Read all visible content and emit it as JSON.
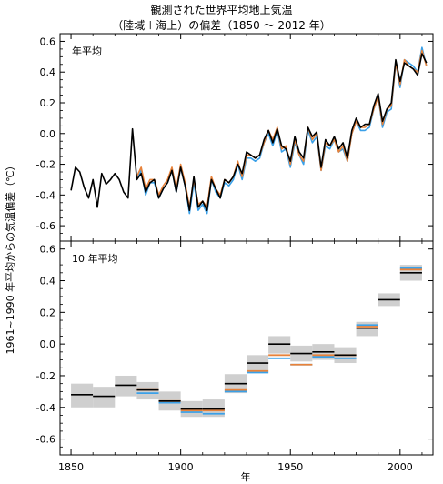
{
  "title_line1": "観測された世界平均地上気温",
  "title_line2": "（陸域＋海上）の偏差（1850 ～ 2012 年）",
  "ylabel": "1961~1990 年平均からの気温偏差（℃）",
  "xlabel": "年",
  "colors": {
    "black": "#000000",
    "orange": "#e8823a",
    "blue": "#3aa0e8",
    "band": "#cfcfcf"
  },
  "chart_data": [
    {
      "type": "line",
      "panel_label": "年平均",
      "ylim": [
        -0.7,
        0.65
      ],
      "xlim": [
        1845,
        2015
      ],
      "yticks": [
        -0.6,
        -0.4,
        -0.2,
        0.0,
        0.2,
        0.4,
        0.6
      ],
      "ytick_labels": [
        "-0.6",
        "-0.4",
        "-0.2",
        "0.0",
        "0.2",
        "0.4",
        "0.6"
      ],
      "x": [
        1850,
        1852,
        1854,
        1856,
        1858,
        1860,
        1862,
        1864,
        1866,
        1868,
        1870,
        1872,
        1874,
        1876,
        1878,
        1880,
        1882,
        1884,
        1886,
        1888,
        1890,
        1892,
        1894,
        1896,
        1898,
        1900,
        1902,
        1904,
        1906,
        1908,
        1910,
        1912,
        1914,
        1916,
        1918,
        1920,
        1922,
        1924,
        1926,
        1928,
        1930,
        1932,
        1934,
        1936,
        1938,
        1940,
        1942,
        1944,
        1946,
        1948,
        1950,
        1952,
        1954,
        1956,
        1958,
        1960,
        1962,
        1964,
        1966,
        1968,
        1970,
        1972,
        1974,
        1976,
        1978,
        1980,
        1982,
        1984,
        1986,
        1988,
        1990,
        1992,
        1994,
        1996,
        1998,
        2000,
        2002,
        2004,
        2006,
        2008,
        2010,
        2012
      ],
      "series": [
        {
          "color": "black",
          "values": [
            -0.37,
            -0.22,
            -0.25,
            -0.35,
            -0.42,
            -0.3,
            -0.48,
            -0.26,
            -0.33,
            -0.3,
            -0.26,
            -0.3,
            -0.38,
            -0.42,
            0.03,
            -0.3,
            -0.26,
            -0.38,
            -0.32,
            -0.3,
            -0.42,
            -0.36,
            -0.32,
            -0.24,
            -0.38,
            -0.22,
            -0.34,
            -0.5,
            -0.28,
            -0.48,
            -0.44,
            -0.5,
            -0.3,
            -0.36,
            -0.42,
            -0.3,
            -0.32,
            -0.28,
            -0.2,
            -0.26,
            -0.12,
            -0.14,
            -0.16,
            -0.14,
            -0.04,
            0.02,
            -0.06,
            0.03,
            -0.08,
            -0.1,
            -0.18,
            -0.02,
            -0.12,
            -0.16,
            0.04,
            -0.02,
            0.01,
            -0.22,
            -0.04,
            -0.08,
            -0.02,
            -0.1,
            -0.06,
            -0.16,
            0.02,
            0.1,
            0.04,
            0.06,
            0.06,
            0.18,
            0.26,
            0.08,
            0.16,
            0.2,
            0.48,
            0.34,
            0.46,
            0.44,
            0.42,
            0.38,
            0.52,
            0.46
          ]
        },
        {
          "color": "orange",
          "values": [
            null,
            null,
            null,
            null,
            null,
            null,
            null,
            null,
            null,
            null,
            null,
            null,
            null,
            null,
            null,
            -0.28,
            -0.22,
            -0.36,
            -0.3,
            -0.3,
            -0.4,
            -0.34,
            -0.3,
            -0.22,
            -0.36,
            -0.2,
            -0.32,
            -0.48,
            -0.3,
            -0.46,
            -0.44,
            -0.48,
            -0.28,
            -0.36,
            -0.4,
            -0.3,
            -0.32,
            -0.28,
            -0.18,
            -0.28,
            -0.14,
            -0.14,
            -0.16,
            -0.14,
            -0.06,
            0.02,
            -0.04,
            0.04,
            -0.1,
            -0.08,
            -0.2,
            -0.04,
            -0.14,
            -0.18,
            0.04,
            -0.04,
            0.0,
            -0.24,
            -0.06,
            -0.08,
            -0.04,
            -0.12,
            -0.08,
            -0.18,
            0.0,
            0.08,
            0.04,
            0.04,
            0.06,
            0.16,
            0.24,
            0.06,
            0.16,
            0.18,
            0.46,
            0.32,
            0.48,
            0.44,
            0.42,
            0.4,
            0.54,
            0.44
          ]
        },
        {
          "color": "blue",
          "values": [
            null,
            null,
            null,
            null,
            null,
            null,
            null,
            null,
            null,
            null,
            null,
            null,
            null,
            null,
            null,
            -0.3,
            -0.24,
            -0.4,
            -0.32,
            -0.32,
            -0.42,
            -0.36,
            -0.32,
            -0.24,
            -0.38,
            -0.22,
            -0.34,
            -0.52,
            -0.32,
            -0.5,
            -0.46,
            -0.52,
            -0.3,
            -0.38,
            -0.42,
            -0.32,
            -0.34,
            -0.3,
            -0.2,
            -0.3,
            -0.16,
            -0.16,
            -0.18,
            -0.16,
            -0.06,
            0.0,
            -0.08,
            0.02,
            -0.12,
            -0.1,
            -0.22,
            -0.06,
            -0.14,
            -0.2,
            0.02,
            -0.06,
            -0.02,
            -0.24,
            -0.08,
            -0.1,
            -0.04,
            -0.12,
            -0.1,
            -0.18,
            0.0,
            0.08,
            0.02,
            0.02,
            0.04,
            0.16,
            0.24,
            0.04,
            0.14,
            0.16,
            0.46,
            0.3,
            0.48,
            0.46,
            0.44,
            0.4,
            0.56,
            0.44
          ]
        }
      ]
    },
    {
      "type": "step",
      "panel_label": "10 年平均",
      "ylim": [
        -0.7,
        0.65
      ],
      "xlim": [
        1845,
        2015
      ],
      "yticks": [
        -0.6,
        -0.4,
        -0.2,
        0.0,
        0.2,
        0.4,
        0.6
      ],
      "ytick_labels": [
        "-0.6",
        "-0.4",
        "-0.2",
        "0.0",
        "0.2",
        "0.4",
        "0.6"
      ],
      "xticks": [
        1850,
        1900,
        1950,
        2000
      ],
      "xtick_labels": [
        "1850",
        "1900",
        "1950",
        "2000"
      ],
      "decades": [
        {
          "start": 1850,
          "end": 1860,
          "black": -0.32,
          "band": [
            -0.4,
            -0.25
          ],
          "orange": null,
          "blue": null
        },
        {
          "start": 1860,
          "end": 1870,
          "black": -0.33,
          "band": [
            -0.4,
            -0.27
          ],
          "orange": null,
          "blue": null
        },
        {
          "start": 1870,
          "end": 1880,
          "black": -0.26,
          "band": [
            -0.33,
            -0.2
          ],
          "orange": null,
          "blue": null
        },
        {
          "start": 1880,
          "end": 1890,
          "black": -0.29,
          "band": [
            -0.35,
            -0.24
          ],
          "orange": -0.29,
          "blue": -0.31
        },
        {
          "start": 1890,
          "end": 1900,
          "black": -0.36,
          "band": [
            -0.42,
            -0.3
          ],
          "orange": -0.36,
          "blue": -0.37
        },
        {
          "start": 1900,
          "end": 1910,
          "black": -0.41,
          "band": [
            -0.46,
            -0.36
          ],
          "orange": -0.42,
          "blue": -0.43
        },
        {
          "start": 1910,
          "end": 1920,
          "black": -0.41,
          "band": [
            -0.46,
            -0.35
          ],
          "orange": -0.42,
          "blue": -0.44
        },
        {
          "start": 1920,
          "end": 1930,
          "black": -0.25,
          "band": [
            -0.31,
            -0.19
          ],
          "orange": -0.29,
          "blue": -0.3
        },
        {
          "start": 1930,
          "end": 1940,
          "black": -0.12,
          "band": [
            -0.18,
            -0.07
          ],
          "orange": -0.17,
          "blue": -0.18
        },
        {
          "start": 1940,
          "end": 1950,
          "black": 0.0,
          "band": [
            -0.06,
            0.05
          ],
          "orange": -0.07,
          "blue": -0.09
        },
        {
          "start": 1950,
          "end": 1960,
          "black": -0.06,
          "band": [
            -0.11,
            -0.01
          ],
          "orange": -0.13,
          "blue": -0.13
        },
        {
          "start": 1960,
          "end": 1970,
          "black": -0.05,
          "band": [
            -0.1,
            0.0
          ],
          "orange": -0.07,
          "blue": -0.08
        },
        {
          "start": 1970,
          "end": 1980,
          "black": -0.07,
          "band": [
            -0.12,
            -0.02
          ],
          "orange": -0.07,
          "blue": -0.09
        },
        {
          "start": 1980,
          "end": 1990,
          "black": 0.1,
          "band": [
            0.05,
            0.14
          ],
          "orange": 0.11,
          "blue": 0.12
        },
        {
          "start": 1990,
          "end": 2000,
          "black": 0.28,
          "band": [
            0.24,
            0.32
          ],
          "orange": null,
          "blue": null
        },
        {
          "start": 2000,
          "end": 2010,
          "black": 0.45,
          "band": [
            0.4,
            0.5
          ],
          "orange": 0.47,
          "blue": 0.48
        }
      ]
    }
  ]
}
